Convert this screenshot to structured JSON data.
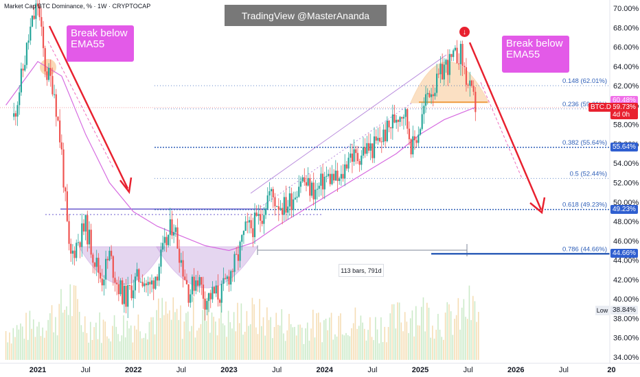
{
  "header": {
    "title": "Market Cap BTC Dominance, % · 1W · CRYPTOCAP"
  },
  "watermark": "TradingView @MasterAnanda",
  "callouts": {
    "left": "Break below\nEMA55",
    "right": "Break below\nEMA55"
  },
  "measure_label": "113 bars, 791d",
  "low_label": "Low",
  "marker_icon": "down-arrow-icon",
  "colors": {
    "bull": "#26a69a",
    "bear": "#ef5350",
    "ema": "#d66ae0",
    "fib": "#2f5fb8",
    "arrow": "#e8212f",
    "callout": "#e35ae8",
    "cup": "#c7a6e0",
    "dome": "#f6b26b"
  },
  "chart_data": {
    "type": "candlestick",
    "title": "Market Cap BTC Dominance, % · 1W · CRYPTOCAP",
    "ylabel": "%",
    "ylim": [
      34,
      71
    ],
    "y_ticks": [
      "34.00%",
      "36.00%",
      "38.00%",
      "40.00%",
      "42.00%",
      "44.00%",
      "46.00%",
      "48.00%",
      "50.00%",
      "52.00%",
      "54.00%",
      "56.00%",
      "58.00%",
      "60.00%",
      "62.00%",
      "64.00%",
      "66.00%",
      "68.00%",
      "70.00%"
    ],
    "x_ticks": [
      "2021",
      "Jul",
      "2022",
      "Jul",
      "2023",
      "Jul",
      "2024",
      "Jul",
      "2025",
      "Jul",
      "2026",
      "Jul",
      "20"
    ],
    "x_tick_bold": [
      "2021",
      "2022",
      "2023",
      "2024",
      "2025",
      "2026",
      "20"
    ],
    "fib_levels": [
      {
        "label": "0.148 (62.01%)",
        "value": 62.01
      },
      {
        "label": "0.236 (59.61%)",
        "value": 59.61
      },
      {
        "label": "0.382 (55.64%)",
        "value": 55.64
      },
      {
        "label": "0.5 (52.44%)",
        "value": 52.44
      },
      {
        "label": "0.618 (49.23%)",
        "value": 49.23
      },
      {
        "label": "0.786 (44.66%)",
        "value": 44.66
      }
    ],
    "price_badges": [
      {
        "text": "60.48%",
        "value": 60.48,
        "bg": "#f070e8",
        "fg": "#ffffff"
      },
      {
        "text": "59.73%",
        "value": 59.73,
        "bg": "#e8212f",
        "fg": "#ffffff",
        "tag": "BTC.D",
        "sub": "4d 0h"
      },
      {
        "text": "55.64%",
        "value": 55.64,
        "bg": "#2f5fd0",
        "fg": "#ffffff"
      },
      {
        "text": "49.23%",
        "value": 49.23,
        "bg": "#2f5fd0",
        "fg": "#ffffff"
      },
      {
        "text": "44.66%",
        "value": 44.66,
        "bg": "#2f5fd0",
        "fg": "#ffffff"
      },
      {
        "text": "38.84%",
        "value": 38.84,
        "bg": "#eaedf3",
        "fg": "#131722"
      }
    ],
    "close_path": [
      [
        "2020-10",
        58.8
      ],
      [
        "2020-11",
        63.0
      ],
      [
        "2020-12",
        67.5
      ],
      [
        "2021-01",
        70.5
      ],
      [
        "2021-01-20",
        66.0
      ],
      [
        "2021-02",
        63.5
      ],
      [
        "2021-03",
        62.0
      ],
      [
        "2021-04",
        55.0
      ],
      [
        "2021-05",
        44.0
      ],
      [
        "2021-06",
        46.0
      ],
      [
        "2021-07",
        47.5
      ],
      [
        "2021-08",
        44.5
      ],
      [
        "2021-09",
        42.0
      ],
      [
        "2021-10",
        44.5
      ],
      [
        "2021-11",
        41.5
      ],
      [
        "2021-12",
        40.0
      ],
      [
        "2022-01",
        41.5
      ],
      [
        "2022-02",
        42.5
      ],
      [
        "2022-03",
        41.0
      ],
      [
        "2022-04",
        43.0
      ],
      [
        "2022-05",
        45.5
      ],
      [
        "2022-06",
        48.0
      ],
      [
        "2022-07",
        44.0
      ],
      [
        "2022-08",
        40.5
      ],
      [
        "2022-09",
        42.5
      ],
      [
        "2022-10",
        40.0
      ],
      [
        "2022-11",
        40.5
      ],
      [
        "2022-12",
        40.5
      ],
      [
        "2023-01",
        42.5
      ],
      [
        "2023-02",
        44.0
      ],
      [
        "2023-03",
        47.0
      ],
      [
        "2023-04",
        47.5
      ],
      [
        "2023-05",
        48.5
      ],
      [
        "2023-06",
        51.0
      ],
      [
        "2023-07",
        50.0
      ],
      [
        "2023-08",
        49.5
      ],
      [
        "2023-09",
        50.5
      ],
      [
        "2023-10",
        52.5
      ],
      [
        "2023-11",
        51.5
      ],
      [
        "2023-12",
        51.0
      ],
      [
        "2024-01",
        52.5
      ],
      [
        "2024-02",
        52.5
      ],
      [
        "2024-03",
        52.0
      ],
      [
        "2024-04",
        55.0
      ],
      [
        "2024-05",
        54.5
      ],
      [
        "2024-06",
        55.5
      ],
      [
        "2024-07",
        55.5
      ],
      [
        "2024-08",
        56.5
      ],
      [
        "2024-09",
        57.5
      ],
      [
        "2024-10",
        59.0
      ],
      [
        "2024-11",
        59.5
      ],
      [
        "2024-12",
        55.5
      ],
      [
        "2025-01",
        58.0
      ],
      [
        "2025-02",
        61.5
      ],
      [
        "2025-03",
        62.0
      ],
      [
        "2025-04",
        64.0
      ],
      [
        "2025-05",
        64.5
      ],
      [
        "2025-06",
        65.5
      ],
      [
        "2025-07",
        62.0
      ],
      [
        "2025-08",
        59.73
      ]
    ],
    "ema55": [
      [
        "2020-09",
        60.0
      ],
      [
        "2021-01",
        64.5
      ],
      [
        "2021-04",
        63.0
      ],
      [
        "2021-07",
        57.0
      ],
      [
        "2021-10",
        52.0
      ],
      [
        "2022-01",
        49.0
      ],
      [
        "2022-04",
        47.5
      ],
      [
        "2022-07",
        46.5
      ],
      [
        "2022-10",
        45.5
      ],
      [
        "2023-01",
        45.0
      ],
      [
        "2023-04",
        45.8
      ],
      [
        "2023-07",
        47.5
      ],
      [
        "2023-10",
        49.0
      ],
      [
        "2024-01",
        50.5
      ],
      [
        "2024-04",
        52.0
      ],
      [
        "2024-07",
        53.5
      ],
      [
        "2024-10",
        55.0
      ],
      [
        "2025-01",
        57.0
      ],
      [
        "2025-04",
        58.5
      ],
      [
        "2025-08",
        59.8
      ]
    ],
    "projection": [
      [
        "2025-07",
        67.0
      ],
      [
        "2025-09",
        61.0
      ],
      [
        "2026-03",
        49.2
      ]
    ],
    "volume": [
      [
        "2020-10",
        0.45
      ],
      [
        "2021-01",
        0.55
      ],
      [
        "2021-04",
        0.75
      ],
      [
        "2021-05",
        0.95
      ],
      [
        "2021-07",
        0.55
      ],
      [
        "2021-10",
        0.5
      ],
      [
        "2022-01",
        0.55
      ],
      [
        "2022-05",
        0.7
      ],
      [
        "2022-07",
        0.6
      ],
      [
        "2022-11",
        0.75
      ],
      [
        "2023-01",
        0.55
      ],
      [
        "2023-03",
        0.7
      ],
      [
        "2023-06",
        0.6
      ],
      [
        "2023-10",
        0.5
      ],
      [
        "2024-01",
        0.55
      ],
      [
        "2024-03",
        0.7
      ],
      [
        "2024-06",
        0.5
      ],
      [
        "2024-09",
        0.55
      ],
      [
        "2024-12",
        0.75
      ],
      [
        "2025-02",
        0.7
      ],
      [
        "2025-04",
        0.6
      ],
      [
        "2025-06",
        0.65
      ],
      [
        "2025-07",
        0.8
      ],
      [
        "2025-08",
        0.7
      ]
    ]
  }
}
